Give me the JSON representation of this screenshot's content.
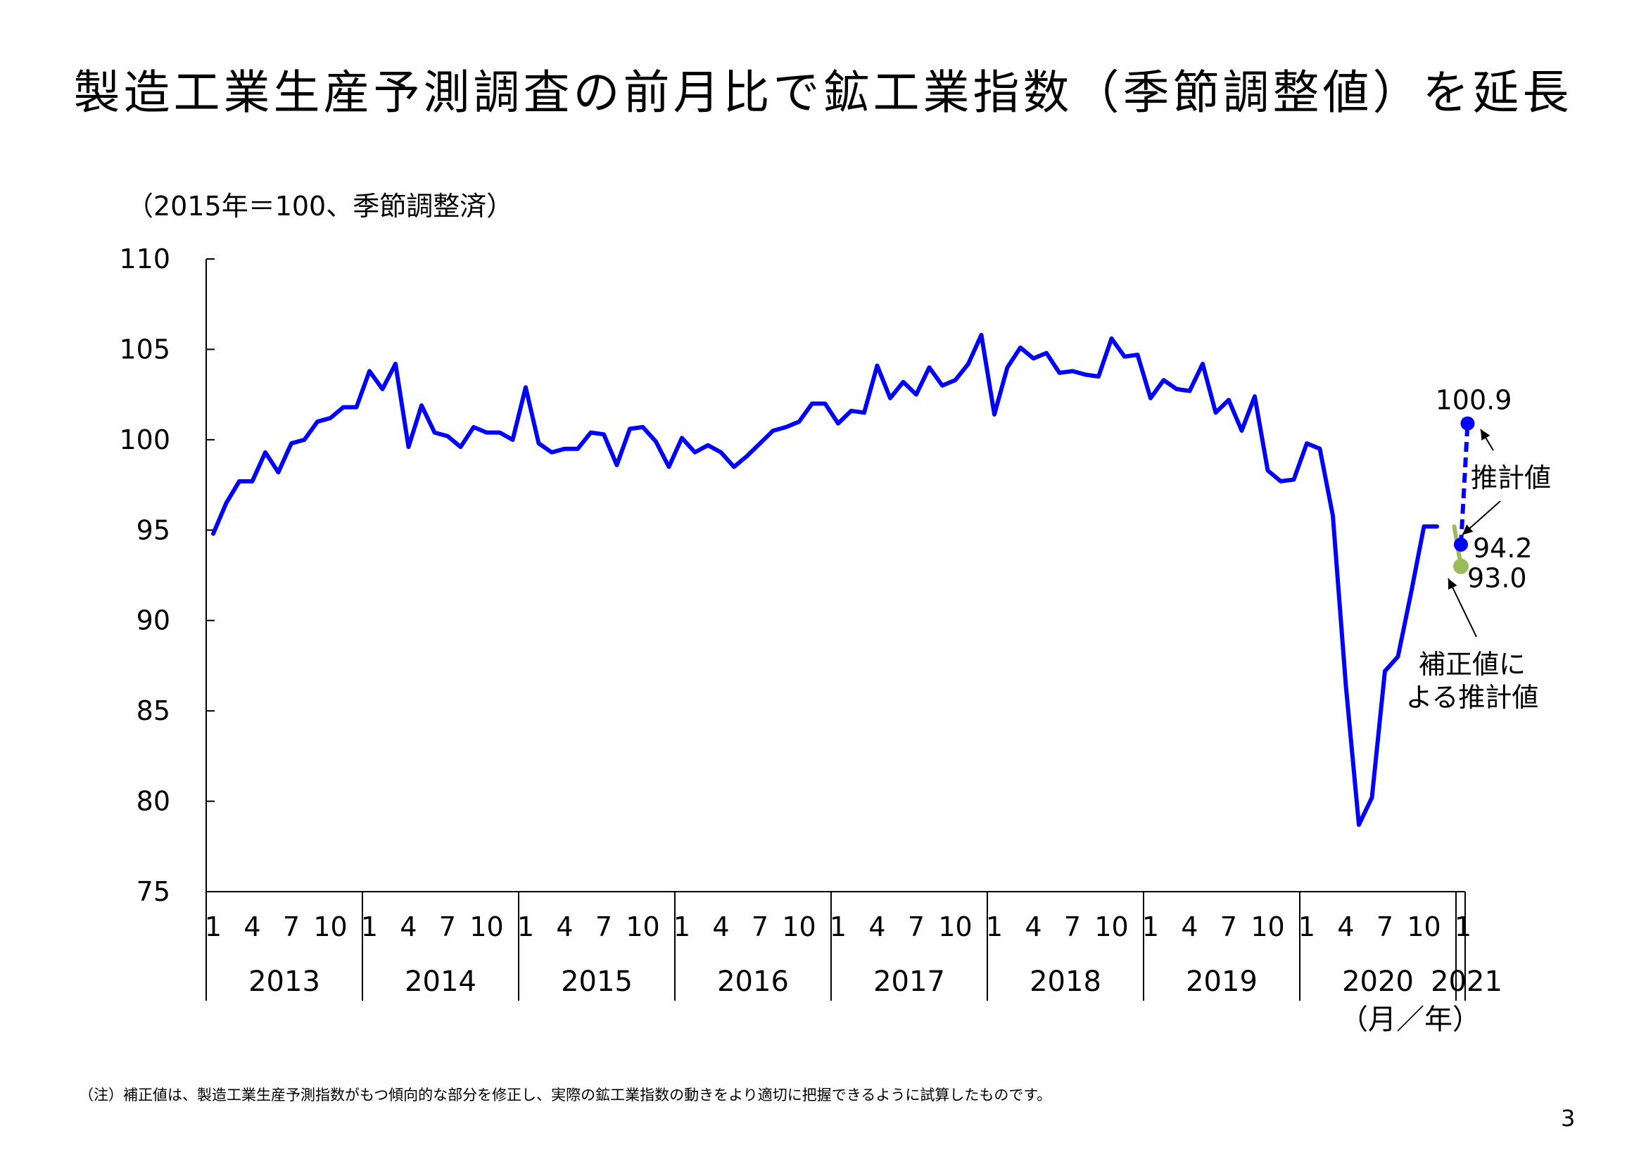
{
  "title": "製造工業生産予測調査の前月比で鉱工業指数（季節調整値）を延長",
  "unit_label": "（2015年＝100、季節調整済）",
  "xaxis_unit": "（月／年）",
  "note": "（注）補正値は、製造工業生産予測指数がもつ傾向的な部分を修正し、実際の鉱工業指数の動きをより適切に把握できるように試算したものです。",
  "page_number": "3",
  "chart_data": {
    "type": "line",
    "ylim": [
      75,
      110
    ],
    "yticks": [
      "75",
      "80",
      "85",
      "90",
      "95",
      "100",
      "105",
      "110"
    ],
    "month_ticks": [
      "1",
      "4",
      "7",
      "10"
    ],
    "years": [
      "2013",
      "2014",
      "2015",
      "2016",
      "2017",
      "2018",
      "2019",
      "2020",
      "2021"
    ],
    "x_start": "2013-01",
    "series": [
      {
        "values": [
          94.8,
          96.5,
          97.7,
          97.7,
          99.3,
          98.2,
          99.8,
          100.0,
          101.0,
          101.2,
          101.8,
          101.8,
          103.8,
          102.8,
          104.2,
          99.6,
          101.9,
          100.4,
          100.2,
          99.6,
          100.7,
          100.4,
          100.4,
          100.0,
          102.9,
          99.8,
          99.3,
          99.5,
          99.5,
          100.4,
          100.3,
          98.6,
          100.6,
          100.7,
          99.9,
          98.5,
          100.1,
          99.3,
          99.7,
          99.3,
          98.5,
          99.1,
          99.8,
          100.5,
          100.7,
          101.0,
          102.0,
          102.0,
          100.9,
          101.6,
          101.5,
          104.1,
          102.3,
          103.2,
          102.5,
          104.0,
          103.0,
          103.3,
          104.2,
          105.8,
          101.4,
          104.0,
          105.1,
          104.5,
          104.8,
          103.7,
          103.8,
          103.6,
          103.5,
          105.6,
          104.6,
          104.7,
          102.3,
          103.3,
          102.8,
          102.7,
          104.2,
          101.5,
          102.2,
          100.5,
          102.4,
          98.3,
          97.7,
          97.8,
          99.8,
          99.5,
          95.8,
          86.4,
          78.7,
          80.2,
          87.2,
          88.0,
          91.5,
          95.2,
          95.2
        ]
      },
      {
        "name": "推計値",
        "style": "dashed",
        "values": [
          {
            "x": "2021-01",
            "y": 94.2
          },
          {
            "x": "2021-02",
            "y": 100.9
          }
        ]
      },
      {
        "name": "補正値による推計値",
        "values": [
          {
            "x": "2020-12",
            "y": 95.2
          },
          {
            "x": "2021-01",
            "y": 93.0
          }
        ]
      }
    ],
    "annotations": [
      {
        "text": "100.9",
        "value": 100.9
      },
      {
        "text": "94.2",
        "value": 94.2
      },
      {
        "text": "93.0",
        "value": 93.0
      },
      {
        "text": "推計値"
      },
      {
        "text_lines": [
          "補正値に",
          "よる推計値"
        ]
      }
    ],
    "colors": {
      "main": "#0000ff",
      "estimate": "#0000ff",
      "corrected": "#9bbb59",
      "axis": "#000000"
    }
  }
}
